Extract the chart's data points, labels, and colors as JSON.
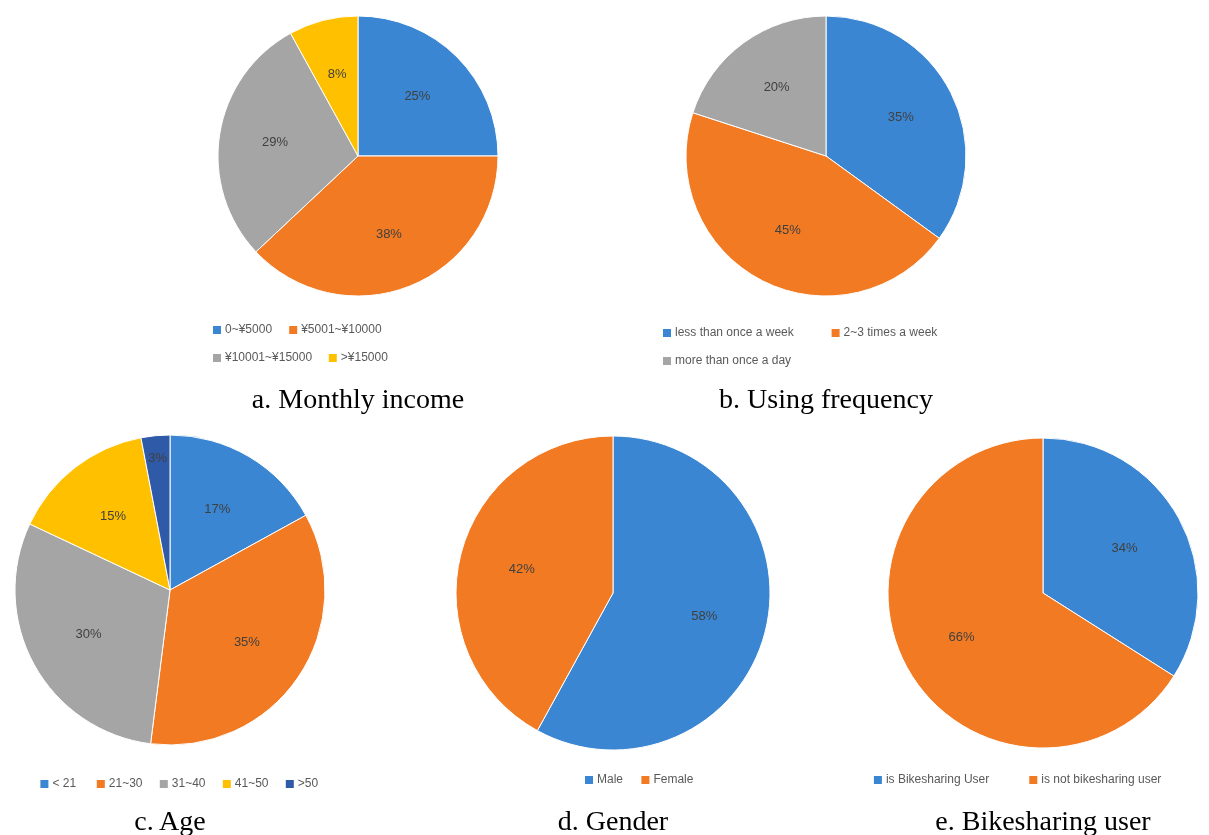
{
  "chart_data": [
    {
      "type": "pie",
      "title": "a. Monthly income",
      "categories": [
        "0~¥5000",
        "¥5001~¥10000",
        "¥10001~¥15000",
        ">¥15000"
      ],
      "values": [
        25,
        38,
        29,
        8
      ],
      "value_labels": [
        "25%",
        "38%",
        "29%",
        "8%"
      ],
      "colors": [
        "#3a86d2",
        "#f27a22",
        "#a5a5a5",
        "#ffc000"
      ],
      "legend": "bottom"
    },
    {
      "type": "pie",
      "title": "b. Using frequency",
      "categories": [
        "less than once a week",
        "2~3 times a week",
        "more than once a day"
      ],
      "values": [
        35,
        45,
        20
      ],
      "value_labels": [
        "35%",
        "45%",
        "20%"
      ],
      "colors": [
        "#3a86d2",
        "#f27a22",
        "#a5a5a5"
      ],
      "legend": "bottom"
    },
    {
      "type": "pie",
      "title": "c. Age",
      "categories": [
        "< 21",
        "21~30",
        "31~40",
        "41~50",
        ">50"
      ],
      "values": [
        17,
        35,
        30,
        15,
        3
      ],
      "value_labels": [
        "17%",
        "35%",
        "30%",
        "15%",
        "3%"
      ],
      "colors": [
        "#3a86d2",
        "#f27a22",
        "#a5a5a5",
        "#ffc000",
        "#2f5aa8"
      ],
      "legend": "bottom"
    },
    {
      "type": "pie",
      "title": "d. Gender",
      "categories": [
        "Male",
        "Female"
      ],
      "values": [
        58,
        42
      ],
      "value_labels": [
        "58%",
        "42%"
      ],
      "colors": [
        "#3a86d2",
        "#f27a22"
      ],
      "legend": "bottom"
    },
    {
      "type": "pie",
      "title": "e. Bikesharing user",
      "categories": [
        "is Bikesharing User",
        "is not bikesharing user"
      ],
      "values": [
        34,
        66
      ],
      "value_labels": [
        "34%",
        "66%"
      ],
      "colors": [
        "#3a86d2",
        "#f27a22"
      ],
      "legend": "bottom"
    }
  ]
}
